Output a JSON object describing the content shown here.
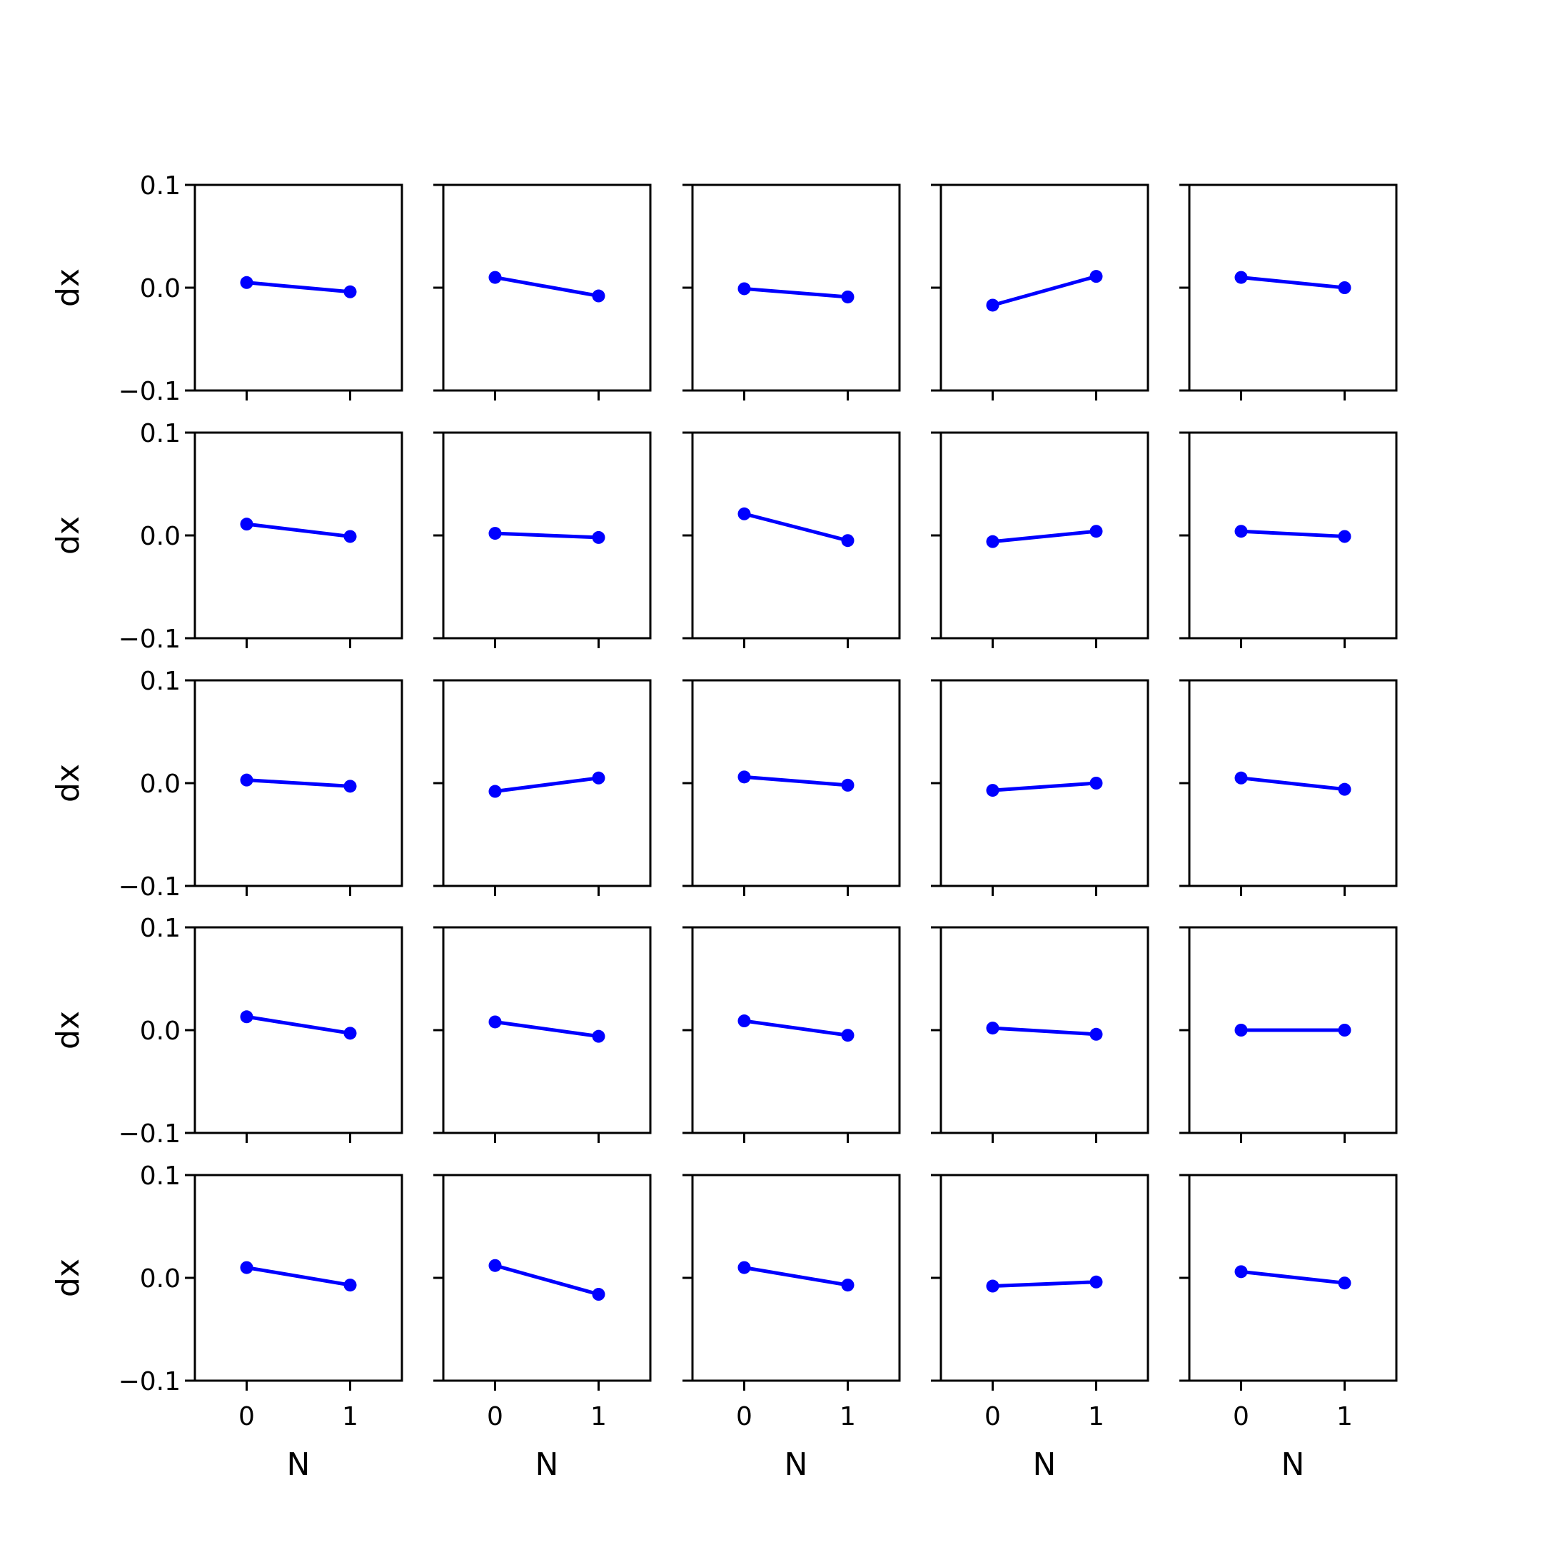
{
  "chart_data": {
    "type": "line",
    "layout": {
      "rows": 5,
      "cols": 5,
      "sharex": true,
      "sharey": true
    },
    "xlabel": "N",
    "ylabel": "dx",
    "xticks": [
      0,
      1
    ],
    "xtick_labels": [
      "0",
      "1"
    ],
    "yticks": [
      0.1,
      0.0,
      -0.1
    ],
    "ytick_labels": [
      "0.1",
      "0.0",
      "−0.1"
    ],
    "xlim": [
      -0.5,
      1.5
    ],
    "ylim": [
      -0.1,
      0.1
    ],
    "grid": false,
    "series_color": "#0000ff",
    "panels": [
      {
        "x": [
          0,
          1
        ],
        "y": [
          0.005,
          -0.004
        ]
      },
      {
        "x": [
          0,
          1
        ],
        "y": [
          0.01,
          -0.008
        ]
      },
      {
        "x": [
          0,
          1
        ],
        "y": [
          -0.001,
          -0.009
        ]
      },
      {
        "x": [
          0,
          1
        ],
        "y": [
          -0.017,
          0.011
        ]
      },
      {
        "x": [
          0,
          1
        ],
        "y": [
          0.01,
          0.0
        ]
      },
      {
        "x": [
          0,
          1
        ],
        "y": [
          0.011,
          -0.001
        ]
      },
      {
        "x": [
          0,
          1
        ],
        "y": [
          0.002,
          -0.002
        ]
      },
      {
        "x": [
          0,
          1
        ],
        "y": [
          0.021,
          -0.005
        ]
      },
      {
        "x": [
          0,
          1
        ],
        "y": [
          -0.006,
          0.004
        ]
      },
      {
        "x": [
          0,
          1
        ],
        "y": [
          0.004,
          -0.001
        ]
      },
      {
        "x": [
          0,
          1
        ],
        "y": [
          0.003,
          -0.003
        ]
      },
      {
        "x": [
          0,
          1
        ],
        "y": [
          -0.008,
          0.005
        ]
      },
      {
        "x": [
          0,
          1
        ],
        "y": [
          0.006,
          -0.002
        ]
      },
      {
        "x": [
          0,
          1
        ],
        "y": [
          -0.007,
          0.0
        ]
      },
      {
        "x": [
          0,
          1
        ],
        "y": [
          0.005,
          -0.006
        ]
      },
      {
        "x": [
          0,
          1
        ],
        "y": [
          0.013,
          -0.003
        ]
      },
      {
        "x": [
          0,
          1
        ],
        "y": [
          0.008,
          -0.006
        ]
      },
      {
        "x": [
          0,
          1
        ],
        "y": [
          0.009,
          -0.005
        ]
      },
      {
        "x": [
          0,
          1
        ],
        "y": [
          0.002,
          -0.004
        ]
      },
      {
        "x": [
          0,
          1
        ],
        "y": [
          0.0,
          0.0
        ]
      },
      {
        "x": [
          0,
          1
        ],
        "y": [
          0.01,
          -0.007
        ]
      },
      {
        "x": [
          0,
          1
        ],
        "y": [
          0.012,
          -0.016
        ]
      },
      {
        "x": [
          0,
          1
        ],
        "y": [
          0.01,
          -0.007
        ]
      },
      {
        "x": [
          0,
          1
        ],
        "y": [
          -0.008,
          -0.004
        ]
      },
      {
        "x": [
          0,
          1
        ],
        "y": [
          0.006,
          -0.005
        ]
      }
    ]
  }
}
